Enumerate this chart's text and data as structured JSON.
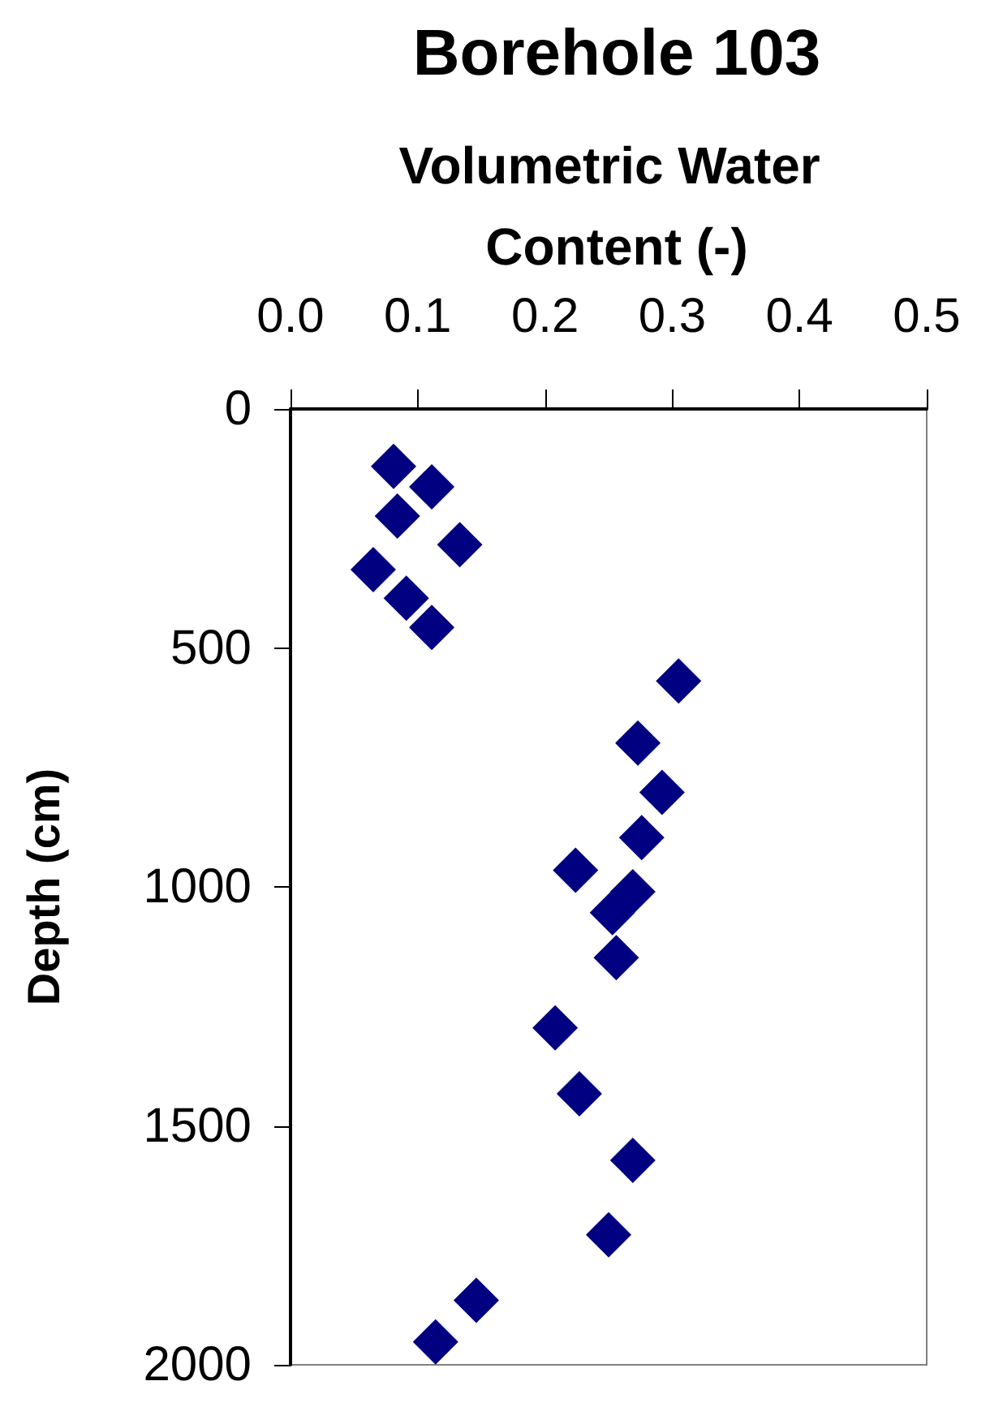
{
  "chart_data": {
    "type": "scatter",
    "title": "Borehole 103",
    "xlabel": "Volumetric Water Content (-)",
    "ylabel": "Depth (cm)",
    "xlim": [
      0,
      0.5
    ],
    "xticks": [
      {
        "value": 0,
        "label": "0.0"
      },
      {
        "value": 0.1,
        "label": "0.1"
      },
      {
        "value": 0.2,
        "label": "0.2"
      },
      {
        "value": 0.3,
        "label": "0.3"
      },
      {
        "value": 0.4,
        "label": "0.4"
      },
      {
        "value": 0.5,
        "label": "0.5"
      }
    ],
    "ylim": [
      2000,
      0
    ],
    "yticks": [
      0,
      500,
      1000,
      1500,
      2000
    ],
    "marker": "diamond",
    "series": [
      {
        "color": "#000080",
        "x": [
          0.081,
          0.111,
          0.084,
          0.133,
          0.065,
          0.091,
          0.111,
          0.305,
          0.273,
          0.292,
          0.276,
          0.224,
          0.269,
          0.253,
          0.256,
          0.208,
          0.227,
          0.269,
          0.25,
          0.146,
          0.114
        ],
        "values": [
          120,
          163,
          224,
          284,
          336,
          396,
          457,
          569,
          699,
          802,
          897,
          965,
          1010,
          1054,
          1148,
          1295,
          1433,
          1572,
          1728,
          1865,
          1952
        ]
      }
    ]
  }
}
